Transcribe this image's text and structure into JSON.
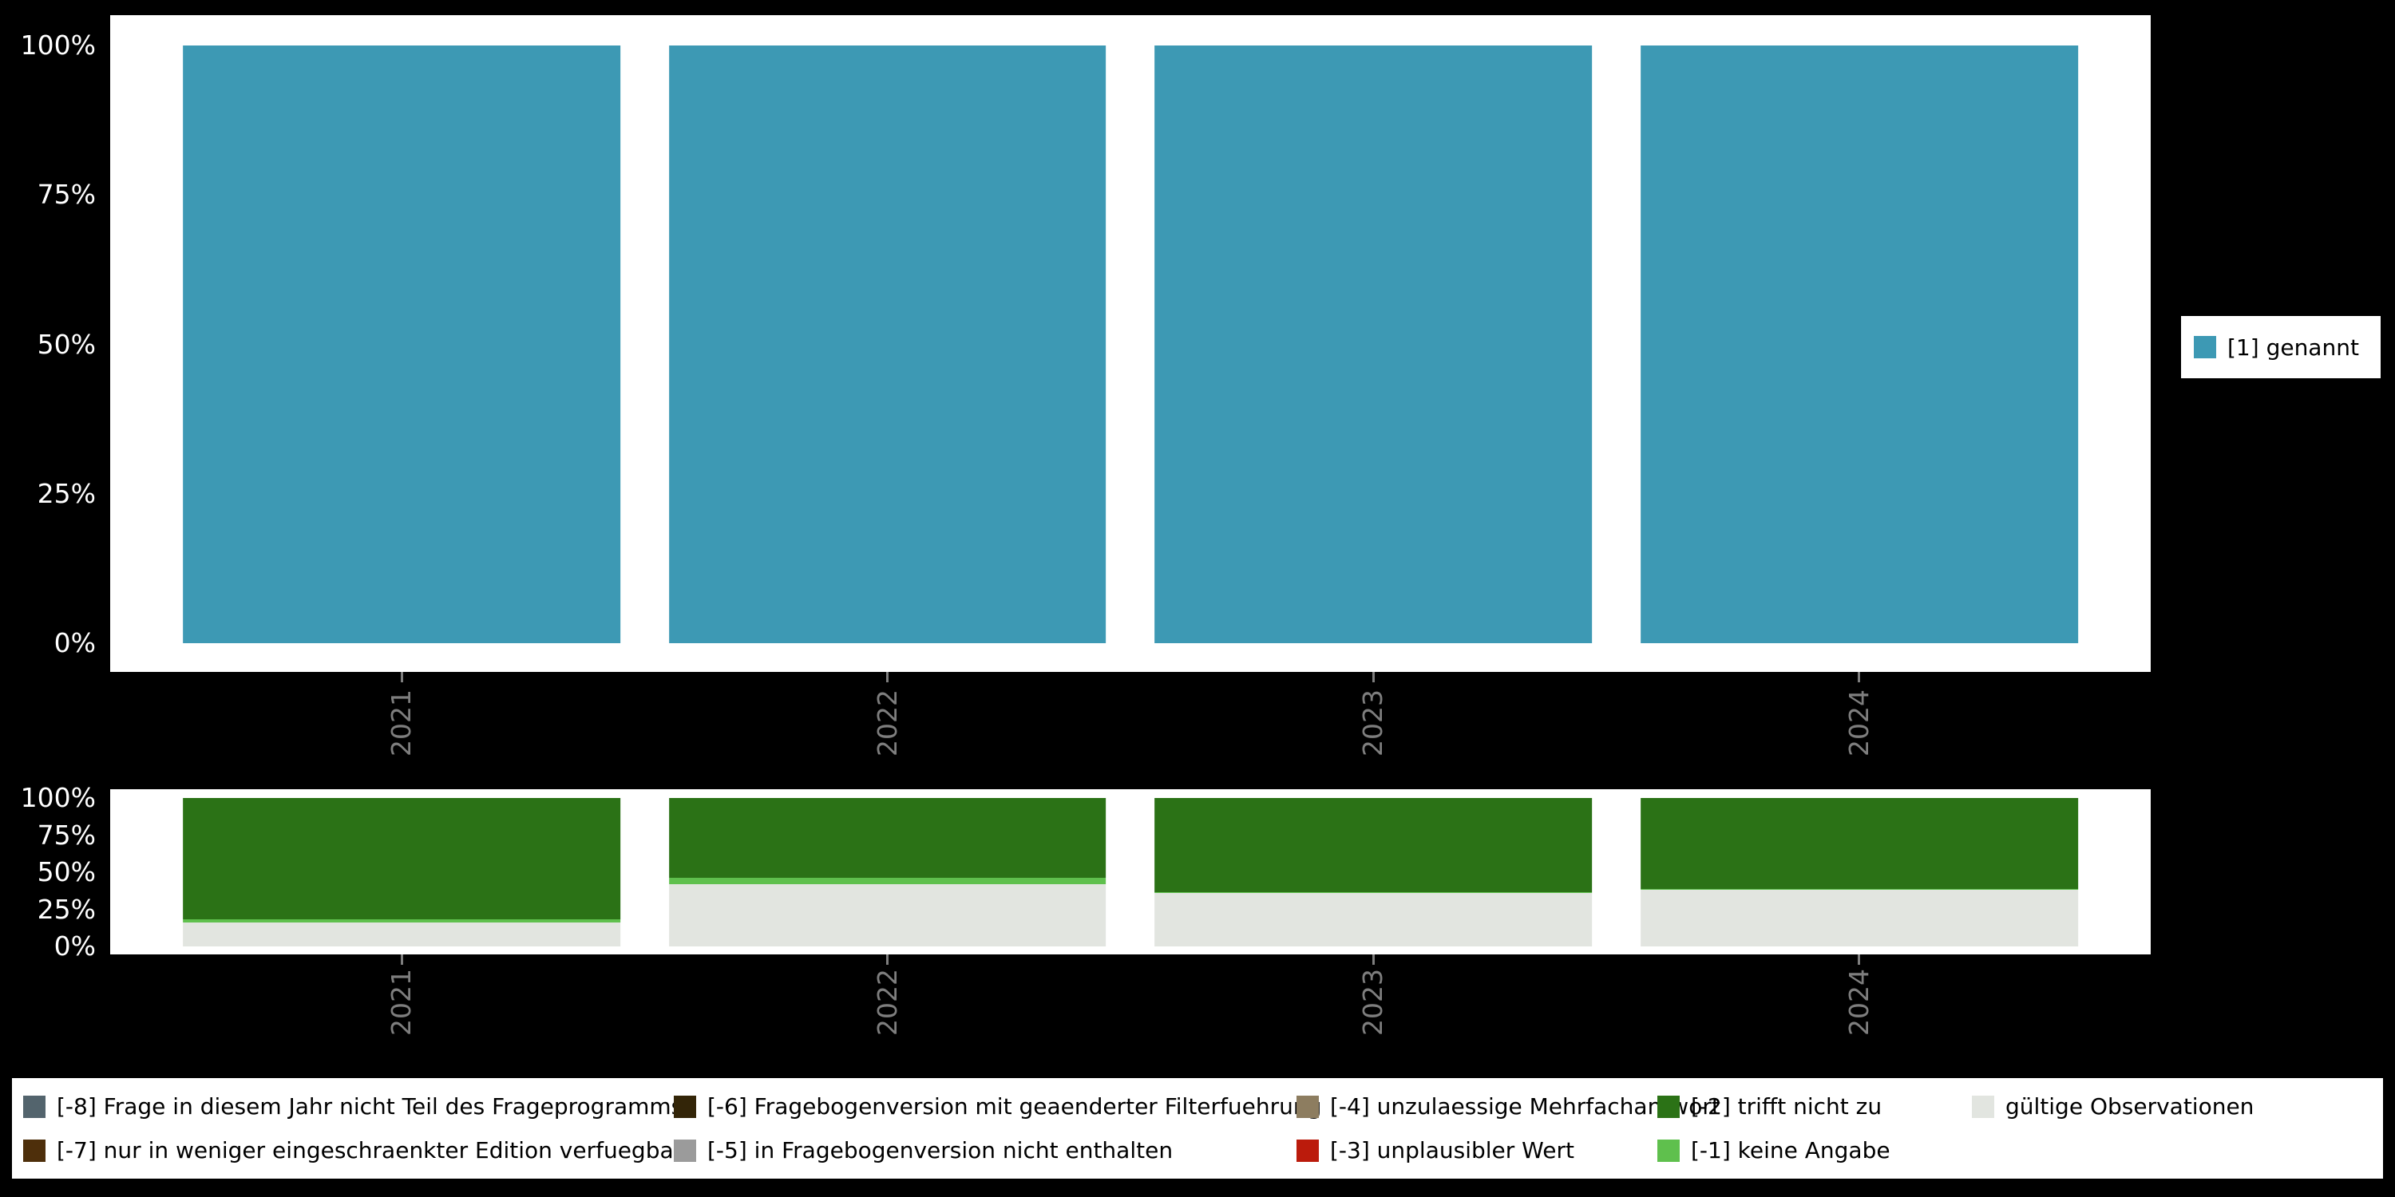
{
  "figure": {
    "background": "#000000",
    "panel_background": "#ffffff",
    "axis_text_color": "#ffffff",
    "category_text_color": "#7e7e7e"
  },
  "chart_data": [
    {
      "id": "values-per-year",
      "type": "bar",
      "stacked": true,
      "orientation": "vertical",
      "categories": [
        "2021",
        "2022",
        "2023",
        "2024"
      ],
      "y_ticks": [
        "100%",
        "75%",
        "50%",
        "25%",
        "0%"
      ],
      "ylim": [
        0,
        100
      ],
      "unit": "%",
      "grid": false,
      "legend_position": "right",
      "series": [
        {
          "name": "[1] genannt",
          "color": "#3D99B4",
          "values": [
            100,
            100,
            100,
            100
          ]
        }
      ]
    },
    {
      "id": "missing-values-per-year",
      "type": "bar",
      "stacked": true,
      "orientation": "vertical",
      "categories": [
        "2021",
        "2022",
        "2023",
        "2024"
      ],
      "y_ticks": [
        "100%",
        "75%",
        "50%",
        "25%",
        "0%"
      ],
      "ylim": [
        0,
        100
      ],
      "unit": "%",
      "grid": false,
      "legend_position": "bottom",
      "series": [
        {
          "name": "gültige Observationen",
          "color": "#E2E5E0",
          "values": [
            16,
            42,
            36,
            38
          ]
        },
        {
          "name": "[-1] keine Angabe",
          "color": "#5FC04D",
          "values": [
            2.5,
            4,
            0.8,
            0.8
          ]
        },
        {
          "name": "[-2] trifft nicht zu",
          "color": "#2B7216",
          "values": [
            81.5,
            54,
            63.2,
            61.2
          ]
        }
      ]
    }
  ],
  "top_legend": {
    "items": [
      {
        "label": "[1] genannt",
        "color": "#3D99B4"
      }
    ]
  },
  "bottom_legend": {
    "columns": 5,
    "rows": 2,
    "items": [
      {
        "label": "[-8] Frage in diesem Jahr nicht Teil des Frageprogramms",
        "color": "#53646D"
      },
      {
        "label": "[-7] nur in weniger eingeschraenkter Edition verfuegbar",
        "color": "#4E2F0B"
      },
      {
        "label": "[-6] Fragebogenversion mit geaenderter Filterfuehrung",
        "color": "#332508"
      },
      {
        "label": "[-5] in Fragebogenversion nicht enthalten",
        "color": "#9B9B9B"
      },
      {
        "label": "[-4] unzulaessige Mehrfachantwort",
        "color": "#8D7D60"
      },
      {
        "label": "[-3] unplausibler Wert",
        "color": "#BB1B0C"
      },
      {
        "label": "[-2] trifft nicht zu",
        "color": "#2B7216"
      },
      {
        "label": "[-1] keine Angabe",
        "color": "#5FC04D"
      },
      {
        "label": "gültige Observationen",
        "color": "#E2E5E0"
      }
    ]
  }
}
